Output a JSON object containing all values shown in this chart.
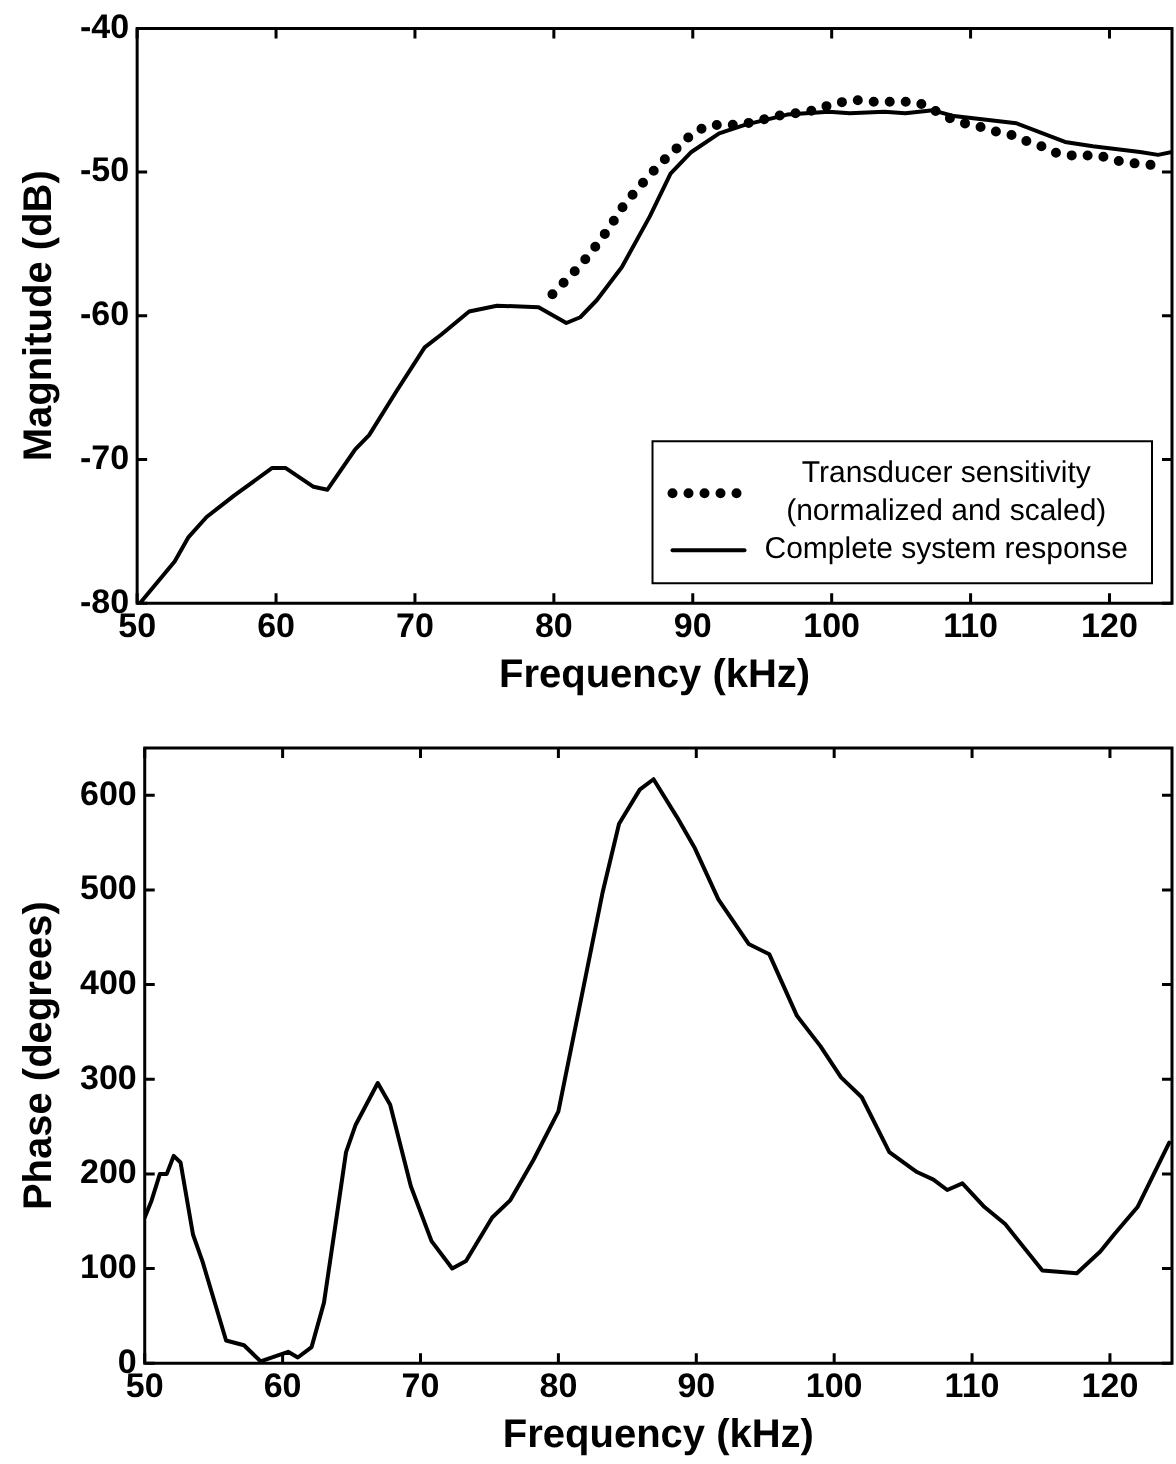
{
  "chart_data": [
    {
      "type": "line",
      "xlabel": "Frequency (kHz)",
      "ylabel": "Magnitude (dB)",
      "xlim": [
        50,
        124.5
      ],
      "xticks": [
        50,
        60,
        70,
        80,
        90,
        100,
        110,
        120
      ],
      "ylim": [
        -80,
        -40
      ],
      "yticks": [
        -80,
        -70,
        -60,
        -50,
        -40
      ],
      "grid": false,
      "legend": "bottom right",
      "series": [
        {
          "name": "Transducer sensitivity\n(normalized and scaled)",
          "color": "#000000",
          "line_style": "dotted",
          "x": [
            79.9,
            80.9,
            81.9,
            82.9,
            83.9,
            84.9,
            85.9,
            87,
            88,
            89,
            90,
            91,
            91.9,
            92.9,
            93.9,
            94.9,
            95.9,
            96.9,
            97.9,
            98.9,
            99.9,
            100.9,
            101.9,
            102.9,
            103.9,
            104.9,
            105.9,
            106.9,
            107.9,
            108.9,
            109.9,
            110.9,
            111.9,
            112.9,
            113.9,
            114.9,
            115.9,
            116.9,
            117.9,
            118.9,
            119.9,
            120.9,
            121.9,
            122.9,
            123.9
          ],
          "values": [
            -58.5,
            -57.5,
            -56.5,
            -55.3,
            -54,
            -52.5,
            -51.3,
            -50.1,
            -49.1,
            -48.2,
            -47.3,
            -46.8,
            -46.7,
            -46.7,
            -46.6,
            -46.4,
            -46.1,
            -46,
            -45.8,
            -45.7,
            -45.3,
            -45.1,
            -45,
            -45.1,
            -45.1,
            -45.1,
            -45.1,
            -45.4,
            -46,
            -46.4,
            -46.7,
            -46.9,
            -47.2,
            -47.4,
            -47.8,
            -48.1,
            -48.6,
            -48.8,
            -48.9,
            -48.8,
            -49,
            -49.3,
            -49.4,
            -49.5,
            -49.4
          ]
        },
        {
          "name": "Complete system response",
          "color": "#000000",
          "line_style": "solid",
          "x": [
            50.2,
            52.7,
            53.7,
            55,
            57,
            59.7,
            60.7,
            62.7,
            63.7,
            65.7,
            66.7,
            68.7,
            70.7,
            71.9,
            73.9,
            75.9,
            78.9,
            80.9,
            81.9,
            83.1,
            84.9,
            86.9,
            88.4,
            89.9,
            91.9,
            93.8,
            96.8,
            99.8,
            101.3,
            103.8,
            105.3,
            107.3,
            108.8,
            113.3,
            116.8,
            118.8,
            122.2,
            123.5,
            124.5
          ],
          "values": [
            -80,
            -77.1,
            -75.4,
            -74,
            -72.5,
            -70.6,
            -70.6,
            -71.9,
            -72.1,
            -69.3,
            -68.3,
            -65.2,
            -62.2,
            -61.3,
            -59.7,
            -59.3,
            -59.4,
            -60.5,
            -60.1,
            -58.9,
            -56.6,
            -53.1,
            -50.1,
            -48.6,
            -47.3,
            -46.7,
            -46,
            -45.8,
            -45.9,
            -45.8,
            -45.9,
            -45.7,
            -46.1,
            -46.6,
            -47.9,
            -48.2,
            -48.6,
            -48.8,
            -48.6
          ]
        }
      ]
    },
    {
      "type": "line",
      "xlabel": "Frequency (kHz)",
      "ylabel": "Phase (degrees)",
      "xlim": [
        50,
        124.5
      ],
      "xticks": [
        50,
        60,
        70,
        80,
        90,
        100,
        110,
        120
      ],
      "ylim": [
        0,
        650
      ],
      "yticks": [
        0,
        100,
        200,
        300,
        400,
        500,
        600
      ],
      "grid": false,
      "series": [
        {
          "color": "#000000",
          "line_style": "solid",
          "x": [
            50,
            50.5,
            51.1,
            51.6,
            52.1,
            52.6,
            53.5,
            54.2,
            55.9,
            57.2,
            58.4,
            60.4,
            61.1,
            62.1,
            63,
            63.8,
            64.6,
            65.3,
            66.9,
            67.8,
            69.3,
            70.8,
            72.3,
            73.3,
            75.2,
            76.5,
            78.2,
            80,
            81.4,
            83.2,
            84.4,
            85.9,
            86.9,
            88.6,
            89.9,
            91.6,
            93.8,
            95.3,
            97.3,
            99,
            100.5,
            102,
            104,
            106,
            107.2,
            108.2,
            109.3,
            110.9,
            112.4,
            115.1,
            117.6,
            119.3,
            120.3,
            122,
            124.3
          ],
          "values": [
            154,
            172,
            200,
            200,
            219,
            212,
            136,
            107,
            24,
            19,
            2,
            12,
            6,
            17,
            64,
            143,
            223,
            252,
            296,
            273,
            187,
            129,
            100,
            108,
            154,
            172,
            215,
            266,
            367,
            497,
            570,
            606,
            617,
            577,
            544,
            490,
            443,
            432,
            367,
            335,
            302,
            281,
            223,
            202,
            194,
            183,
            190,
            165,
            147,
            98,
            95,
            118,
            136,
            165,
            233
          ]
        }
      ]
    }
  ]
}
